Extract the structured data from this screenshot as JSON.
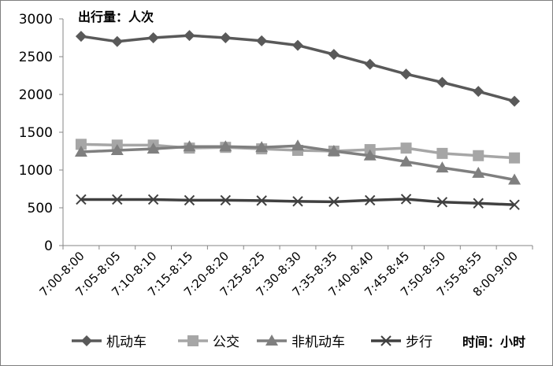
{
  "chart_data": {
    "type": "line",
    "ylabel": "出行量：人次",
    "xlabel": "时间：小时",
    "ylim": [
      0,
      3000
    ],
    "yticks": [
      0,
      500,
      1000,
      1500,
      2000,
      2500,
      3000
    ],
    "grid": false,
    "legend_position": "bottom",
    "categories": [
      "7:00-8:00",
      "7:05-8:05",
      "7:10-8:10",
      "7:15-8:15",
      "7:20-8:20",
      "7:25-8:25",
      "7:30-8:30",
      "7:35-8:35",
      "7:40-8:40",
      "7:45-8:45",
      "7:50-8:50",
      "7:55-8:55",
      "8:00-9:00"
    ],
    "series": [
      {
        "name": "机动车",
        "marker": "diamond",
        "color": "#595959",
        "values": [
          2770,
          2700,
          2750,
          2780,
          2750,
          2710,
          2650,
          2530,
          2400,
          2270,
          2160,
          2040,
          1910
        ]
      },
      {
        "name": "公交",
        "marker": "square",
        "color": "#a6a6a6",
        "values": [
          1340,
          1330,
          1330,
          1290,
          1300,
          1280,
          1260,
          1250,
          1270,
          1290,
          1220,
          1190,
          1160
        ]
      },
      {
        "name": "非机动车",
        "marker": "triangle",
        "color": "#7f7f7f",
        "values": [
          1240,
          1260,
          1280,
          1310,
          1310,
          1300,
          1320,
          1250,
          1190,
          1110,
          1030,
          960,
          870
        ]
      },
      {
        "name": "步行",
        "marker": "x",
        "color": "#404040",
        "values": [
          610,
          610,
          610,
          600,
          600,
          595,
          585,
          580,
          600,
          615,
          575,
          560,
          540
        ]
      }
    ]
  }
}
